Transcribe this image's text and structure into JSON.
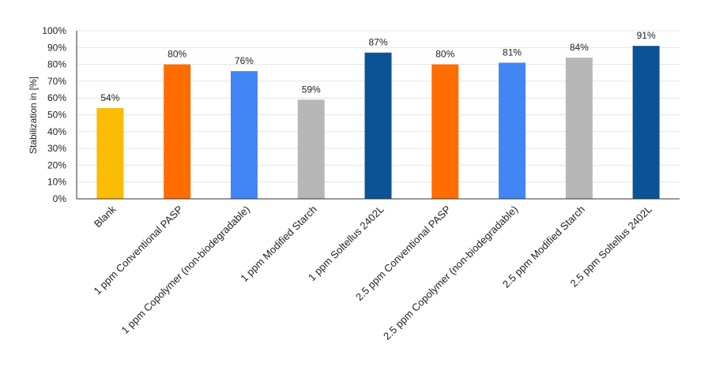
{
  "chart_data": {
    "type": "bar",
    "title": "",
    "xlabel": "",
    "ylabel": "Stabilization in [%]",
    "ylim": [
      0,
      100
    ],
    "yticks": [
      "0%",
      "10%",
      "20%",
      "30%",
      "40%",
      "50%",
      "60%",
      "70%",
      "80%",
      "90%",
      "100%"
    ],
    "grid": true,
    "legend": "none",
    "categories": [
      "Blank",
      "1 ppm Conventional PASP",
      "1 ppm Copolymer (non-biodegradable)",
      "1 ppm Modified Starch",
      "1 ppm Soltellus 2402L",
      "2.5 ppm Conventional PASP",
      "2.5 ppm Copolymer (non-biodegradable)",
      "2.5 ppm Modified Starch",
      "2.5 ppm Soltellus 2402L"
    ],
    "values": [
      54,
      80,
      76,
      59,
      87,
      80,
      81,
      84,
      91
    ],
    "data_labels": [
      "54%",
      "80%",
      "76%",
      "59%",
      "87%",
      "80%",
      "81%",
      "84%",
      "91%"
    ],
    "colors": [
      "#FBBC04",
      "#FF6D01",
      "#4285F4",
      "#B7B7B7",
      "#0B5394",
      "#FF6D01",
      "#4285F4",
      "#B7B7B7",
      "#0B5394"
    ]
  }
}
